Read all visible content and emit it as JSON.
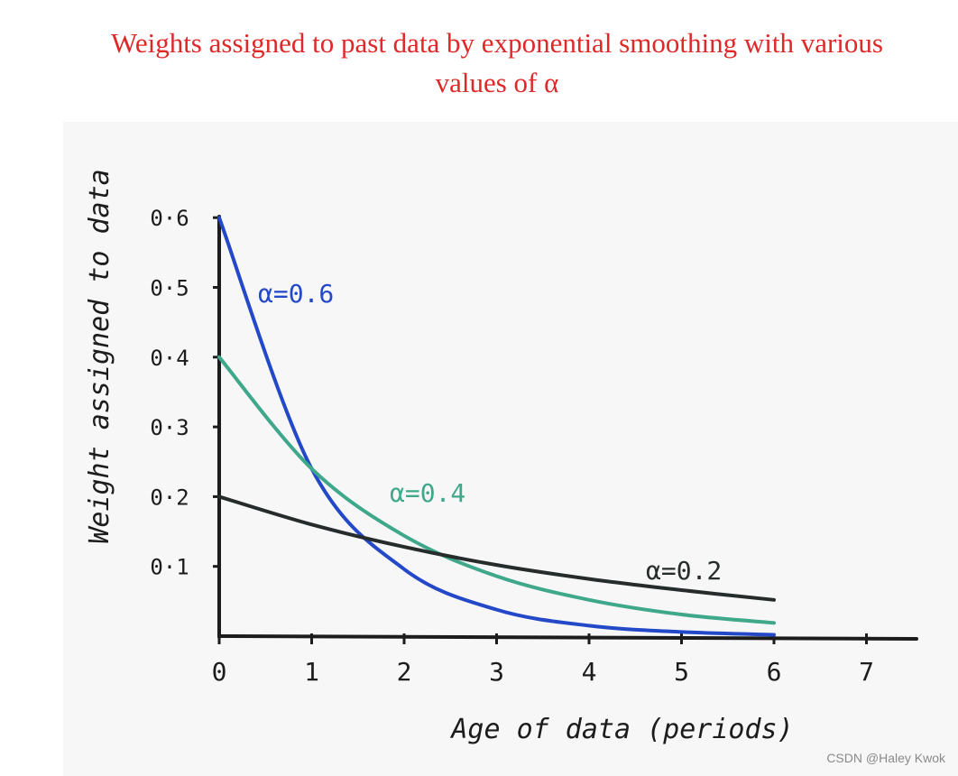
{
  "title": {
    "line1": "Weights assigned to past data by exponential smoothing with various",
    "line2": "values of α"
  },
  "watermark": "CSDN @Haley Kwok",
  "colors": {
    "title": "#e02828",
    "alpha_0_6": "#2449c8",
    "alpha_0_4": "#3fa88a",
    "alpha_0_2": "#262b2b"
  },
  "chart_data": {
    "type": "line",
    "xlabel": "Age of data (periods)",
    "ylabel": "Weight assigned to data",
    "xlim": [
      0,
      7.6
    ],
    "ylim": [
      0,
      0.6
    ],
    "x_ticks": [
      "0",
      "1",
      "2",
      "3",
      "4",
      "5",
      "6",
      "7"
    ],
    "y_ticks": [
      "0·1",
      "0·2",
      "0·3",
      "0·4",
      "0·5",
      "0·6"
    ],
    "y_tick_values": [
      0.1,
      0.2,
      0.3,
      0.4,
      0.5,
      0.6
    ],
    "grid": false,
    "x": [
      0,
      1,
      2,
      3,
      4,
      5,
      6
    ],
    "series": [
      {
        "name": "α = 0.6",
        "label": "α=0.6",
        "color": "#2449c8",
        "values": [
          0.6,
          0.24,
          0.096,
          0.038,
          0.015,
          0.006,
          0.002
        ]
      },
      {
        "name": "α = 0.4",
        "label": "α=0.4",
        "color": "#3fa88a",
        "values": [
          0.4,
          0.24,
          0.144,
          0.086,
          0.052,
          0.031,
          0.019
        ]
      },
      {
        "name": "α = 0.2",
        "label": "α=0.2",
        "color": "#262b2b",
        "values": [
          0.2,
          0.16,
          0.128,
          0.102,
          0.082,
          0.066,
          0.052
        ]
      }
    ]
  }
}
